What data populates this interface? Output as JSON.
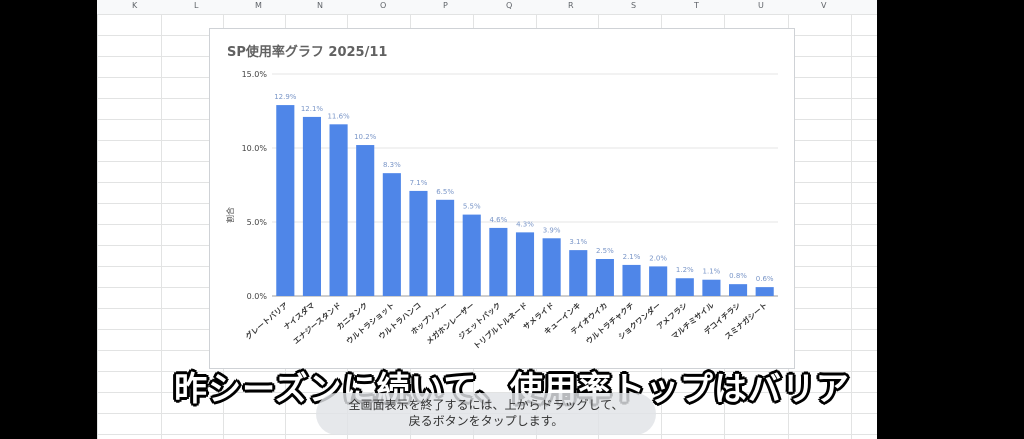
{
  "sheet": {
    "columns": [
      "K",
      "L",
      "M",
      "N",
      "O",
      "P",
      "Q",
      "R",
      "S",
      "T",
      "U",
      "V"
    ]
  },
  "colors": {
    "bar": "#4f86e8",
    "label": "#7a96c8",
    "grid": "#e6e6e6"
  },
  "chart_data": {
    "type": "bar",
    "title": "SP使用率グラフ 2025/11",
    "xlabel": "",
    "ylabel": "割合",
    "ylim": [
      0,
      15
    ],
    "yticks": [
      "0.0%",
      "5.0%",
      "10.0%",
      "15.0%"
    ],
    "categories": [
      "グレートバリア",
      "ナイスダマ",
      "エナジースタンド",
      "カニタンク",
      "ウルトラショット",
      "ウルトラハンコ",
      "ホップソナー",
      "メガホンレーザー",
      "ジェットパック",
      "トリプルトルネード",
      "サメライド",
      "キューインキ",
      "テイオウイカ",
      "ウルトラチャクチ",
      "ショクワンダー",
      "アメフラシ",
      "マルチミサイル",
      "デコイチラシ",
      "スミナガシート"
    ],
    "values": [
      12.9,
      12.1,
      11.6,
      10.2,
      8.3,
      7.1,
      6.5,
      5.5,
      4.6,
      4.3,
      3.9,
      3.1,
      2.5,
      2.1,
      2.0,
      1.2,
      1.1,
      0.8,
      0.6
    ],
    "data_labels": [
      "12.9%",
      "12.1%",
      "11.6%",
      "10.2%",
      "8.3%",
      "7.1%",
      "6.5%",
      "5.5%",
      "4.6%",
      "4.3%",
      "3.9%",
      "3.1%",
      "2.5%",
      "2.1%",
      "2.0%",
      "1.2%",
      "1.1%",
      "0.8%",
      "0.6%"
    ],
    "grid": true,
    "legend": "none"
  },
  "caption": "昨シーズンに続いて、使用率トップはバリア",
  "toast": {
    "line1": "全画面表示を終了するには、上からドラッグして、",
    "line2": "戻るボタンをタップします。"
  }
}
